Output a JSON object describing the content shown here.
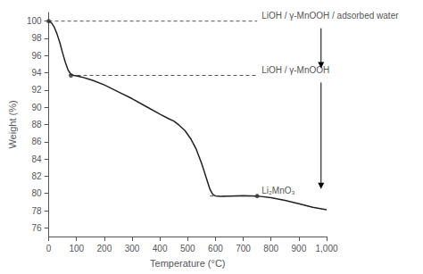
{
  "chart_data": {
    "type": "line",
    "xlabel": "Temperature (°C)",
    "ylabel": "Weight (%)",
    "xlim": [
      0,
      1000
    ],
    "ylim": [
      75,
      101
    ],
    "xticks": [
      0,
      100,
      200,
      300,
      400,
      500,
      600,
      700,
      800,
      900,
      1000
    ],
    "yticks": [
      76,
      78,
      80,
      82,
      84,
      86,
      88,
      90,
      92,
      94,
      96,
      98,
      100
    ],
    "grid": false,
    "x": [
      0,
      10,
      20,
      30,
      40,
      50,
      60,
      70,
      80,
      90,
      100,
      120,
      140,
      160,
      200,
      250,
      300,
      350,
      400,
      430,
      450,
      470,
      490,
      510,
      530,
      550,
      560,
      570,
      580,
      590,
      600,
      620,
      650,
      700,
      750,
      800,
      850,
      900,
      950,
      1000
    ],
    "values": [
      100.0,
      99.8,
      99.3,
      98.5,
      97.5,
      96.3,
      95.2,
      94.3,
      93.8,
      93.7,
      93.65,
      93.5,
      93.3,
      93.1,
      92.6,
      91.8,
      91.0,
      90.1,
      89.2,
      88.7,
      88.4,
      87.9,
      87.3,
      86.4,
      85.2,
      83.5,
      82.5,
      81.5,
      80.5,
      79.9,
      79.7,
      79.65,
      79.7,
      79.75,
      79.7,
      79.5,
      79.2,
      78.8,
      78.4,
      78.1
    ],
    "color": "#222222",
    "annotations": [
      {
        "text": "LiOH / γ-MnOOH / adsorbed water",
        "line": {
          "x": [
            0,
            750
          ],
          "y": 100.0,
          "color": "#555555",
          "line_style": "dashed"
        },
        "point": {
          "x": 0,
          "y": 100.0,
          "color": "#333333",
          "marker": "circle"
        }
      },
      {
        "text": "LiOH / γ-MnOOH",
        "line": {
          "x": [
            80,
            750
          ],
          "y": 93.7,
          "color": "#555555",
          "line_style": "dashed"
        },
        "point": {
          "x": 80,
          "y": 93.7,
          "color": "#333333",
          "marker": "circle"
        }
      },
      {
        "text": "Li₂MnO₃",
        "line": {
          "x": [
            580,
            750
          ],
          "y": 79.7,
          "color": "#555555",
          "line_style": "dashed"
        },
        "point": {
          "x": 750,
          "y": 79.7,
          "color": "#333333",
          "marker": "circle"
        }
      }
    ],
    "arrows": [
      {
        "x": 980,
        "y": [
          100.0,
          93.7
        ],
        "color": "#000000"
      },
      {
        "x": 980,
        "y": [
          93.7,
          79.7
        ],
        "color": "#000000"
      }
    ]
  }
}
